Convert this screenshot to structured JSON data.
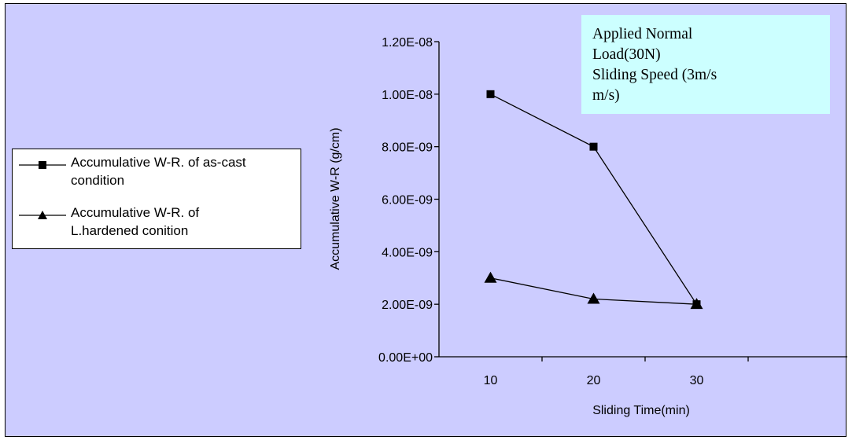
{
  "chart_data": {
    "type": "line",
    "x": [
      10,
      20,
      30
    ],
    "x_tick_labels": [
      "10",
      "20",
      "30"
    ],
    "xlabel": "Sliding Time(min)",
    "ylabel": "Accumulative W-R (g/cm)",
    "ylim": [
      0,
      1.2e-08
    ],
    "y_tick_values": [
      0,
      2e-09,
      4e-09,
      6e-09,
      8e-09,
      1e-08,
      1.2e-08
    ],
    "y_tick_labels": [
      "0.00E+00",
      "2.00E-09",
      "4.00E-09",
      "6.00E-09",
      "8.00E-09",
      "1.00E-08",
      "1.20E-08"
    ],
    "series": [
      {
        "name": "Accumulative W-R. of as-cast condition",
        "marker": "square",
        "values": [
          1e-08,
          8e-09,
          2e-09
        ]
      },
      {
        "name": "Accumulative W-R. of L.hardened conition",
        "marker": "triangle",
        "values": [
          3e-09,
          2.2e-09,
          2e-09
        ]
      }
    ],
    "legend": {
      "position": "left",
      "items": [
        {
          "line1": "Accumulative W-R. of as-cast",
          "line2": "condition"
        },
        {
          "line1": "Accumulative W-R. of",
          "line2": "L.hardened conition"
        }
      ]
    },
    "annotation": {
      "lines": [
        "Applied Normal",
        "Load(30N)",
        "Sliding Speed (3m/s",
        "m/s)"
      ]
    },
    "grid": false,
    "colors": {
      "plot_background": "#ccccff",
      "annotation_background": "#ccffff",
      "line": "#000000"
    }
  }
}
